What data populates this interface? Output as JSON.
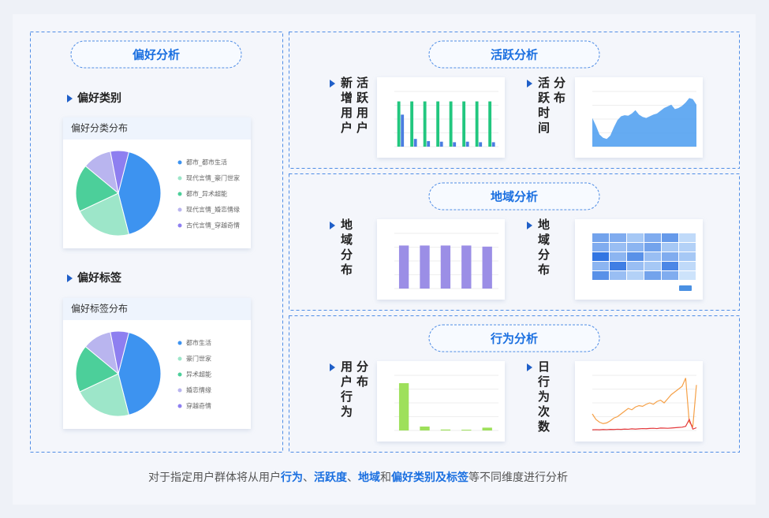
{
  "left": {
    "title": "偏好分析",
    "blocks": [
      {
        "heading": "偏好类别",
        "card_title": "偏好分类分布",
        "chart": {
          "type": "pie",
          "categories": [
            "都市_都市生活",
            "现代言情_豪门世家",
            "都市_异术超能",
            "现代言情_婚恋情缘",
            "古代言情_穿越奇情"
          ],
          "values": [
            42,
            22,
            18,
            11,
            7
          ],
          "colors": [
            "#3d93f0",
            "#9de6c9",
            "#4ccf9a",
            "#b9b5ef",
            "#8e7ff0"
          ]
        }
      },
      {
        "heading": "偏好标签",
        "card_title": "偏好标签分布",
        "chart": {
          "type": "pie",
          "categories": [
            "都市生活",
            "豪门世家",
            "异术超能",
            "婚恋情缘",
            "穿越奇情"
          ],
          "values": [
            42,
            22,
            18,
            11,
            7
          ],
          "colors": [
            "#3d93f0",
            "#9de6c9",
            "#4ccf9a",
            "#b9b5ef",
            "#8e7ff0"
          ]
        }
      }
    ]
  },
  "right": [
    {
      "title": "活跃分析",
      "items": [
        {
          "label_columns": [
            "新增用户",
            "活跃用户"
          ],
          "chart": {
            "type": "bar",
            "ylim": [
              0,
              100000
            ],
            "series": [
              {
                "color": "#22c77f",
                "values": [
                  82000,
                  82000,
                  82000,
                  82000,
                  82000,
                  82000,
                  82000,
                  82000
                ]
              },
              {
                "color": "#4a7de0",
                "values": [
                  58000,
                  14000,
                  10000,
                  9000,
                  8000,
                  9000,
                  8000,
                  8000
                ]
              }
            ]
          }
        },
        {
          "label_columns": [
            "活跃时间",
            "分布"
          ],
          "chart": {
            "type": "area",
            "ylim": [
              0,
              100
            ],
            "color": "#4a9cf0",
            "values": [
              52,
              38,
              22,
              16,
              14,
              20,
              35,
              48,
              55,
              57,
              56,
              60,
              66,
              58,
              54,
              52,
              55,
              58,
              60,
              65,
              70,
              73,
              76,
              68,
              70,
              74,
              80,
              88,
              86,
              76
            ]
          }
        }
      ]
    },
    {
      "title": "地域分析",
      "items": [
        {
          "label_columns": [
            "地域分布"
          ],
          "chart": {
            "type": "bar",
            "ylim": [
              0,
              100
            ],
            "series": [
              {
                "color": "#9b8ee6",
                "values": [
                  78,
                  78,
                  78,
                  78,
                  76
                ]
              }
            ]
          }
        },
        {
          "label_columns": [
            "地域分布"
          ],
          "chart": {
            "type": "heatmap",
            "values": [
              [
                60,
                55,
                40,
                55,
                65,
                30
              ],
              [
                55,
                45,
                50,
                60,
                40,
                35
              ],
              [
                85,
                50,
                70,
                45,
                55,
                40
              ],
              [
                50,
                80,
                45,
                40,
                75,
                30
              ],
              [
                70,
                45,
                35,
                60,
                55,
                25
              ]
            ]
          }
        }
      ]
    },
    {
      "title": "行为分析",
      "items": [
        {
          "label_columns": [
            "用户行为",
            "分布"
          ],
          "chart": {
            "type": "bar",
            "ylim": [
              0,
              350000
            ],
            "series": [
              {
                "color": "#9ee05b",
                "values": [
                  300000,
                  25000,
                  6000,
                  5000,
                  18000
                ]
              }
            ]
          }
        },
        {
          "label_columns": [
            "日行为次数"
          ],
          "chart": {
            "type": "line",
            "ylim": [
              0,
              400
            ],
            "series": [
              {
                "color": "#f5a047",
                "values": [
                  120,
                  80,
                  60,
                  50,
                  55,
                  70,
                  90,
                  100,
                  120,
                  140,
                  160,
                  150,
                  170,
                  180,
                  175,
                  190,
                  200,
                  190,
                  210,
                  220,
                  200,
                  230,
                  260,
                  280,
                  300,
                  320,
                  380,
                  60,
                  30,
                  330
                ]
              },
              {
                "color": "#e4393c",
                "values": [
                  5,
                  6,
                  5,
                  7,
                  6,
                  8,
                  7,
                  9,
                  8,
                  10,
                  9,
                  12,
                  10,
                  12,
                  14,
                  13,
                  15,
                  16,
                  14,
                  18,
                  17,
                  16,
                  18,
                  20,
                  22,
                  24,
                  30,
                  80,
                  10,
                  20
                ]
              }
            ]
          }
        }
      ]
    }
  ],
  "footer": {
    "segments": [
      {
        "text": "对于指定用户群体将从用户",
        "highlight": false
      },
      {
        "text": "行为",
        "highlight": true
      },
      {
        "text": "、",
        "highlight": false
      },
      {
        "text": "活跃度",
        "highlight": true
      },
      {
        "text": "、",
        "highlight": false
      },
      {
        "text": "地域",
        "highlight": true
      },
      {
        "text": "和",
        "highlight": false
      },
      {
        "text": "偏好类别及标签",
        "highlight": true
      },
      {
        "text": "等不同维度进行分析",
        "highlight": false
      }
    ]
  }
}
